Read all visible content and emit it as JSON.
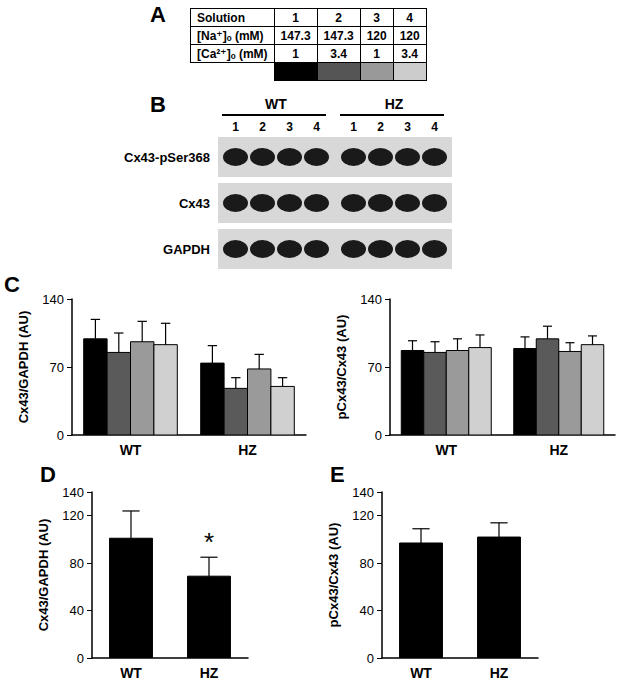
{
  "panel_labels": [
    "A",
    "B",
    "C",
    "D",
    "E"
  ],
  "table": {
    "header": [
      "Solution",
      "1",
      "2",
      "3",
      "4"
    ],
    "rows": [
      [
        "[Na⁺]ₒ (mM)",
        "147.3",
        "147.3",
        "120",
        "120"
      ],
      [
        "[Ca²⁺]ₒ (mM)",
        "1",
        "3.4",
        "1",
        "3.4"
      ]
    ],
    "swatches": [
      "#000000",
      "#555555",
      "#999999",
      "#cccccc"
    ]
  },
  "blot": {
    "groups": [
      {
        "label": "WT",
        "lanes": [
          "1",
          "2",
          "3",
          "4"
        ]
      },
      {
        "label": "HZ",
        "lanes": [
          "1",
          "2",
          "3",
          "4"
        ]
      }
    ],
    "rows": [
      "Cx43-pSer368",
      "Cx43",
      "GAPDH"
    ]
  },
  "chart_data": [
    {
      "type": "bar",
      "ylabel": "Cx43/GAPDH (AU)",
      "categories": [
        "WT",
        "HZ"
      ],
      "series": [
        {
          "color": "#000000",
          "values": [
            99,
            74
          ],
          "errors": [
            20,
            18
          ]
        },
        {
          "color": "#5a5a5a",
          "values": [
            85,
            48
          ],
          "errors": [
            20,
            11
          ]
        },
        {
          "color": "#9a9a9a",
          "values": [
            96,
            68
          ],
          "errors": [
            21,
            15
          ]
        },
        {
          "color": "#d0d0d0",
          "values": [
            93,
            50
          ],
          "errors": [
            22,
            9
          ]
        }
      ],
      "ylim": [
        0,
        140
      ],
      "yticks": [
        0,
        70,
        140
      ]
    },
    {
      "type": "bar",
      "ylabel": "pCx43/Cx43 (AU)",
      "categories": [
        "WT",
        "HZ"
      ],
      "series": [
        {
          "color": "#000000",
          "values": [
            87,
            89
          ],
          "errors": [
            10,
            12
          ]
        },
        {
          "color": "#5a5a5a",
          "values": [
            85,
            99
          ],
          "errors": [
            11,
            13
          ]
        },
        {
          "color": "#9a9a9a",
          "values": [
            87,
            86
          ],
          "errors": [
            12,
            9
          ]
        },
        {
          "color": "#d0d0d0",
          "values": [
            90,
            93
          ],
          "errors": [
            13,
            9
          ]
        }
      ],
      "ylim": [
        0,
        140
      ],
      "yticks": [
        0,
        70,
        140
      ]
    },
    {
      "type": "bar",
      "ylabel": "Cx43/GAPDH (AU)",
      "categories": [
        "WT",
        "HZ"
      ],
      "values": [
        101,
        69
      ],
      "errors": [
        23,
        16
      ],
      "color": "#000000",
      "annotations": [
        {
          "text": "*",
          "category": "HZ"
        }
      ],
      "ylim": [
        0,
        140
      ],
      "yticks": [
        0,
        40,
        80,
        120,
        140
      ]
    },
    {
      "type": "bar",
      "ylabel": "pCx43/Cx43 (AU)",
      "categories": [
        "WT",
        "HZ"
      ],
      "values": [
        97,
        102
      ],
      "errors": [
        12,
        12
      ],
      "color": "#000000",
      "ylim": [
        0,
        140
      ],
      "yticks": [
        0,
        40,
        80,
        120,
        140
      ]
    }
  ]
}
